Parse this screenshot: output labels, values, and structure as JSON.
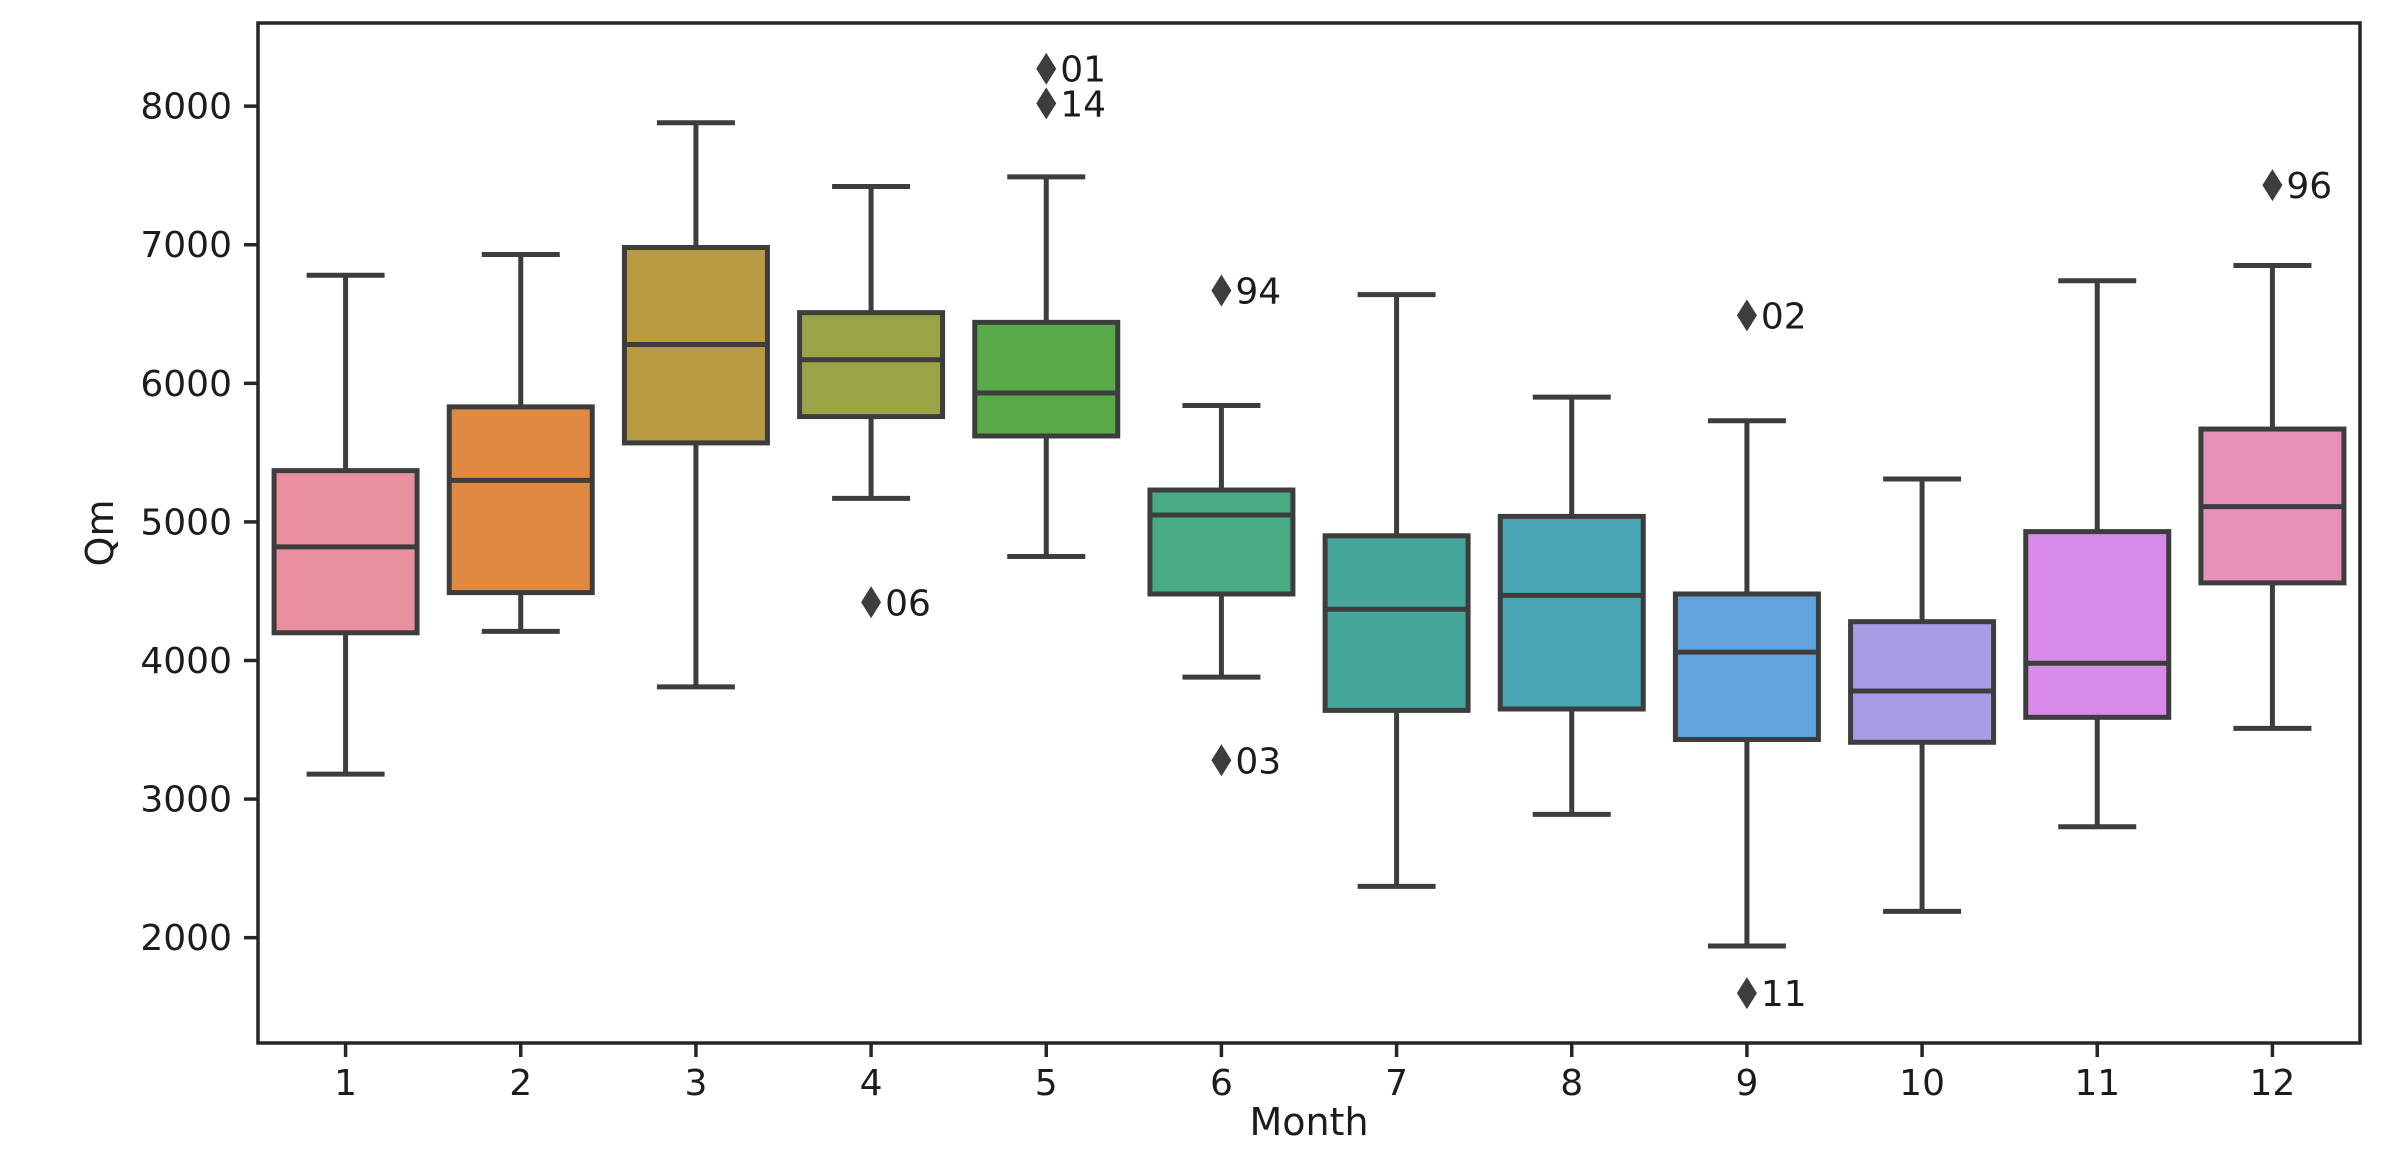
{
  "chart_data": {
    "type": "box",
    "title": "",
    "xlabel": "Month",
    "ylabel": "Qm",
    "categories": [
      "1",
      "2",
      "3",
      "4",
      "5",
      "6",
      "7",
      "8",
      "9",
      "10",
      "11",
      "12"
    ],
    "ylim": [
      1240,
      8600
    ],
    "yticks": [
      2000,
      3000,
      4000,
      5000,
      6000,
      7000,
      8000
    ],
    "grid": false,
    "frame": true,
    "legend_position": "none",
    "outlier_marker": "thin-diamond",
    "colors": {
      "background": "#ffffff",
      "axis": "#262626",
      "tick_text": "#1c1c1c",
      "box_edge": "#3d3d3d",
      "whisker": "#3d3d3d",
      "outlier": "#3d3d3d"
    },
    "series": [
      {
        "month": "1",
        "whislo": 3180,
        "q1": 4200,
        "med": 4820,
        "q3": 5370,
        "whishi": 6780,
        "fill": "#e8909f",
        "outliers": []
      },
      {
        "month": "2",
        "whislo": 4210,
        "q1": 4490,
        "med": 5300,
        "q3": 5830,
        "whishi": 6930,
        "fill": "#e08a41",
        "outliers": []
      },
      {
        "month": "3",
        "whislo": 3810,
        "q1": 5570,
        "med": 6280,
        "q3": 6980,
        "whishi": 7880,
        "fill": "#b89a40",
        "outliers": []
      },
      {
        "month": "4",
        "whislo": 5170,
        "q1": 5760,
        "med": 6170,
        "q3": 6510,
        "whishi": 7420,
        "fill": "#9aa447",
        "outliers": [
          {
            "value": 4420,
            "label": "06"
          }
        ]
      },
      {
        "month": "5",
        "whislo": 4750,
        "q1": 5620,
        "med": 5930,
        "q3": 6440,
        "whishi": 7490,
        "fill": "#58ab48",
        "outliers": [
          {
            "value": 8270,
            "label": "01"
          },
          {
            "value": 8020,
            "label": "14"
          }
        ]
      },
      {
        "month": "6",
        "whislo": 3880,
        "q1": 4480,
        "med": 5050,
        "q3": 5230,
        "whishi": 5840,
        "fill": "#48ab85",
        "outliers": [
          {
            "value": 6670,
            "label": "94"
          },
          {
            "value": 3280,
            "label": "03"
          }
        ]
      },
      {
        "month": "7",
        "whislo": 2370,
        "q1": 3640,
        "med": 4370,
        "q3": 4900,
        "whishi": 6640,
        "fill": "#46a69b",
        "outliers": []
      },
      {
        "month": "8",
        "whislo": 2890,
        "q1": 3650,
        "med": 4470,
        "q3": 5040,
        "whishi": 5900,
        "fill": "#4aa5b3",
        "outliers": []
      },
      {
        "month": "9",
        "whislo": 1940,
        "q1": 3430,
        "med": 4060,
        "q3": 4480,
        "whishi": 5730,
        "fill": "#61a3de",
        "outliers": [
          {
            "value": 6490,
            "label": "02"
          },
          {
            "value": 1600,
            "label": "11"
          }
        ]
      },
      {
        "month": "10",
        "whislo": 2190,
        "q1": 3410,
        "med": 3780,
        "q3": 4280,
        "whishi": 5310,
        "fill": "#a89ce4",
        "outliers": []
      },
      {
        "month": "11",
        "whislo": 2800,
        "q1": 3590,
        "med": 3980,
        "q3": 4930,
        "whishi": 6740,
        "fill": "#d88ae8",
        "outliers": []
      },
      {
        "month": "12",
        "whislo": 3510,
        "q1": 4560,
        "med": 5110,
        "q3": 5670,
        "whishi": 6850,
        "fill": "#e88fba",
        "outliers": [
          {
            "value": 7430,
            "label": "96"
          }
        ]
      }
    ]
  }
}
